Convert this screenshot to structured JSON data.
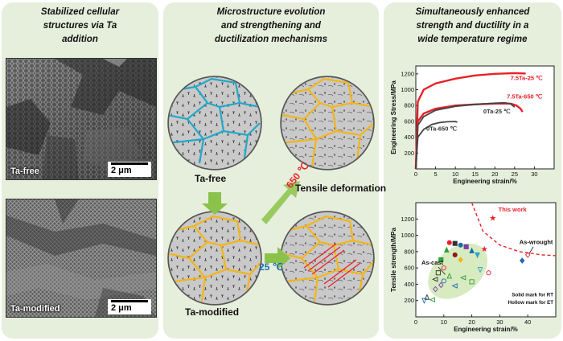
{
  "colors": {
    "panel": "#e6efdc",
    "red": "#e8212a",
    "blue": "#1d6bb5",
    "grain": "#f2b51b",
    "cell": "#22a8c9",
    "arrow": "#8bc34a"
  },
  "headings": {
    "left": [
      "Stabilized cellular",
      "structures via Ta",
      "addition"
    ],
    "middle": [
      "Microstructure evolution",
      "and strengthening and",
      "ductilization mechanisms"
    ],
    "right": [
      "Simultaneously enhanced",
      "strength and ductility in a",
      "wide temperature regime"
    ]
  },
  "images": {
    "top_label": "Ta-free",
    "bottom_label": "Ta-modified",
    "scale_bar": "2 μm"
  },
  "schematic": {
    "ta_free": "Ta-free",
    "ta_modified": "Ta-modified",
    "temp_high": "650 ℃",
    "temp_low": "25 ℃",
    "tensile": "Tensile deformation"
  },
  "chart_data": [
    {
      "type": "line",
      "xlabel": "Engineering strain/%",
      "ylabel": "Engineering Stress/MPa",
      "xlim": [
        0,
        35
      ],
      "ylim": [
        0,
        1300
      ],
      "xticks": [
        0,
        5,
        10,
        15,
        20,
        25,
        30
      ],
      "yticks": [
        200,
        400,
        600,
        800,
        1000,
        1200
      ],
      "series": [
        {
          "name": "7.5Ta-25 ℃",
          "color": "#e8212a",
          "points": [
            [
              0,
              0
            ],
            [
              0.5,
              850
            ],
            [
              2,
              1000
            ],
            [
              5,
              1080
            ],
            [
              10,
              1140
            ],
            [
              15,
              1180
            ],
            [
              20,
              1200
            ],
            [
              25,
              1210
            ],
            [
              27.8,
              1205
            ]
          ]
        },
        {
          "name": "7.5Ta-650 ℃",
          "color": "#e8212a",
          "points": [
            [
              0,
              0
            ],
            [
              0.5,
              600
            ],
            [
              2,
              700
            ],
            [
              5,
              760
            ],
            [
              10,
              800
            ],
            [
              15,
              815
            ],
            [
              20,
              825
            ],
            [
              24,
              825
            ],
            [
              25.5,
              800
            ],
            [
              26.5,
              760
            ],
            [
              27,
              720
            ]
          ]
        },
        {
          "name": "0Ta-25 ℃",
          "color": "#444444",
          "points": [
            [
              0,
              0
            ],
            [
              0.5,
              550
            ],
            [
              2,
              660
            ],
            [
              5,
              740
            ],
            [
              10,
              790
            ],
            [
              15,
              815
            ],
            [
              20,
              830
            ],
            [
              22.5,
              835
            ],
            [
              24,
              820
            ],
            [
              25,
              780
            ]
          ]
        },
        {
          "name": "0Ta-650 ℃",
          "color": "#444444",
          "points": [
            [
              0,
              0
            ],
            [
              0.5,
              400
            ],
            [
              2,
              500
            ],
            [
              4,
              560
            ],
            [
              6,
              585
            ],
            [
              8,
              595
            ],
            [
              10,
              598
            ],
            [
              10.5,
              590
            ]
          ]
        }
      ]
    },
    {
      "type": "scatter",
      "xlabel": "Engineering strain/%",
      "ylabel": "Tensile strength/MPa",
      "xlim": [
        0,
        50
      ],
      "ylim": [
        0,
        1400
      ],
      "xticks": [
        0,
        10,
        20,
        30,
        40
      ],
      "yticks": [
        200,
        400,
        600,
        800,
        1000,
        1200
      ],
      "annotations": [
        "This work",
        "As-wrought",
        "As-cast",
        "Solid mark for RT",
        "Hollow mark for ET"
      ],
      "this_work": [
        {
          "x": 27.5,
          "y": 1210
        },
        {
          "x": 24.5,
          "y": 830
        }
      ],
      "points": [
        {
          "x": 12,
          "y": 910,
          "shape": "o",
          "filled": true,
          "color": "#e8212a"
        },
        {
          "x": 14,
          "y": 900,
          "shape": "s",
          "filled": true,
          "color": "#333333"
        },
        {
          "x": 16,
          "y": 880,
          "shape": "o",
          "filled": true,
          "color": "#1d6bb5"
        },
        {
          "x": 11,
          "y": 820,
          "shape": "^",
          "filled": true,
          "color": "#2e9e3a"
        },
        {
          "x": 18,
          "y": 860,
          "shape": "s",
          "filled": true,
          "color": "#7a3fa0"
        },
        {
          "x": 20,
          "y": 810,
          "shape": "^",
          "filled": true,
          "color": "#1d6bb5"
        },
        {
          "x": 22,
          "y": 760,
          "shape": "v",
          "filled": true,
          "color": "#26a2c9"
        },
        {
          "x": 14,
          "y": 760,
          "shape": "o",
          "filled": true,
          "color": "#8a1c1c"
        },
        {
          "x": 9,
          "y": 700,
          "shape": "s",
          "filled": true,
          "color": "#2e9e3a"
        },
        {
          "x": 16,
          "y": 700,
          "shape": "d",
          "filled": true,
          "color": "#f2b51b"
        },
        {
          "x": 38,
          "y": 690,
          "shape": "d",
          "filled": true,
          "color": "#1d6bb5"
        },
        {
          "x": 10,
          "y": 600,
          "shape": "o",
          "filled": false,
          "color": "#e8212a"
        },
        {
          "x": 8,
          "y": 540,
          "shape": "s",
          "filled": false,
          "color": "#333333"
        },
        {
          "x": 12,
          "y": 500,
          "shape": "^",
          "filled": false,
          "color": "#2e9e3a"
        },
        {
          "x": 7,
          "y": 460,
          "shape": "<",
          "filled": false,
          "color": "#333333"
        },
        {
          "x": 10,
          "y": 440,
          "shape": "o",
          "filled": false,
          "color": "#1d6bb5"
        },
        {
          "x": 9,
          "y": 390,
          "shape": "d",
          "filled": false,
          "color": "#7a3fa0"
        },
        {
          "x": 7,
          "y": 340,
          "shape": "d",
          "filled": false,
          "color": "#7a3fa0"
        },
        {
          "x": 4,
          "y": 240,
          "shape": "^",
          "filled": false,
          "color": "#333333"
        },
        {
          "x": 3,
          "y": 200,
          "shape": "v",
          "filled": false,
          "color": "#1d6bb5"
        },
        {
          "x": 6,
          "y": 210,
          "shape": "<",
          "filled": false,
          "color": "#2e9e3a"
        },
        {
          "x": 20,
          "y": 430,
          "shape": "s",
          "filled": false,
          "color": "#2e9e3a"
        },
        {
          "x": 23,
          "y": 580,
          "shape": "v",
          "filled": false,
          "color": "#26a2c9"
        },
        {
          "x": 26,
          "y": 540,
          "shape": "o",
          "filled": false,
          "color": "#e8212a"
        },
        {
          "x": 17,
          "y": 480,
          "shape": "<",
          "filled": false,
          "color": "#2e9e3a"
        },
        {
          "x": 14,
          "y": 380,
          "shape": "<",
          "filled": false,
          "color": "#1d6bb5"
        },
        {
          "x": 40,
          "y": 760,
          "shape": "d",
          "filled": false,
          "color": "#e8212a"
        }
      ]
    }
  ]
}
